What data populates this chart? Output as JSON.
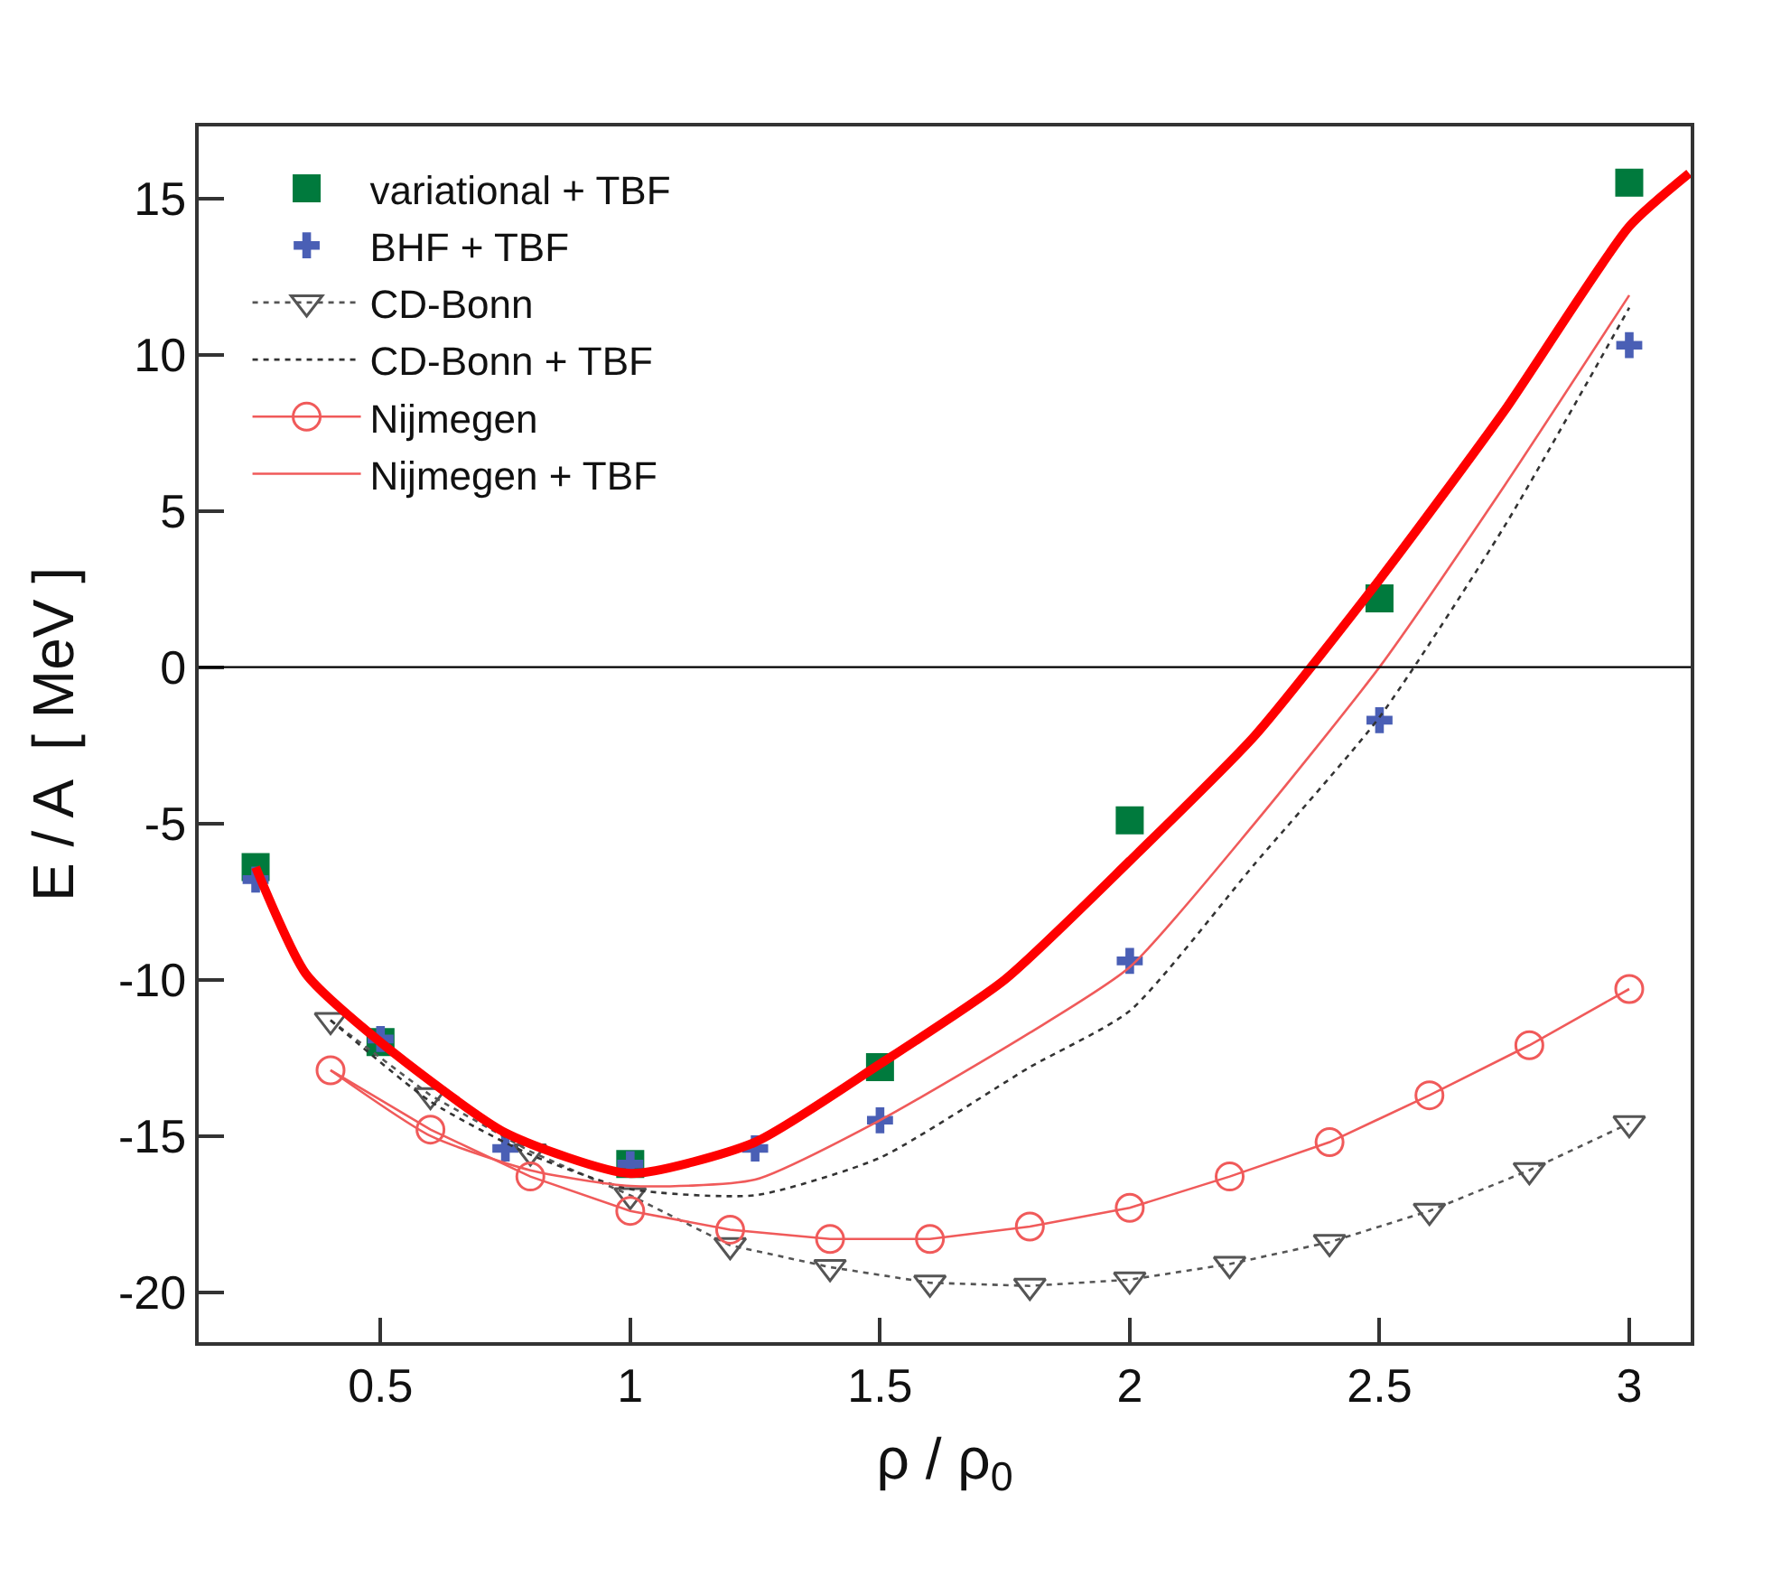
{
  "chart_data": {
    "type": "line",
    "xlabel": "ρ / ρ$_{0}$",
    "ylabel": "E / A  [ MeV ]",
    "xlim": [
      0.136,
      3.123
    ],
    "ylim": [
      -21.6,
      17.3
    ],
    "xticks": [
      0.5,
      1,
      1.5,
      2,
      2.5,
      3
    ],
    "yticks": [
      -20,
      -15,
      -10,
      -5,
      0,
      5,
      10,
      15
    ],
    "legend": "top left",
    "ref_lines": [
      {
        "axis": "y",
        "value": 0,
        "color": "#000000"
      }
    ],
    "series": [
      {
        "color": "#ff0000",
        "marker": "none",
        "line_style": "solid",
        "x": [
          0.25,
          0.35,
          0.5,
          0.75,
          1.0,
          1.25,
          1.5,
          1.75,
          2.0,
          2.25,
          2.5,
          2.75,
          3.0,
          3.12
        ],
        "values": [
          -6.4,
          -9.8,
          -12.0,
          -14.9,
          -16.2,
          -15.2,
          -12.7,
          -10.0,
          -6.2,
          -2.2,
          2.8,
          8.2,
          14.1,
          15.8
        ]
      },
      {
        "type": "scatter",
        "name": "variational + TBF",
        "color": "#007a3d",
        "marker": "square",
        "x": [
          0.25,
          0.5,
          1.0,
          1.5,
          2.0,
          2.5,
          3.0
        ],
        "values": [
          -6.4,
          -12.0,
          -15.9,
          -12.8,
          -4.9,
          2.2,
          15.5
        ]
      },
      {
        "type": "scatter",
        "name": "BHF + TBF",
        "color": "#4a5fb5",
        "marker": "cross",
        "x": [
          0.25,
          0.5,
          0.75,
          1.0,
          1.25,
          1.5,
          2.0,
          2.5,
          3.0
        ],
        "values": [
          -6.8,
          -11.9,
          -15.4,
          -15.9,
          -15.4,
          -14.5,
          -9.4,
          -1.7,
          10.3
        ]
      },
      {
        "name": "CD-Bonn",
        "color": "#555555",
        "marker": "triangle",
        "line_style": "dotted",
        "x": [
          0.4,
          0.6,
          0.8,
          1.0,
          1.2,
          1.4,
          1.6,
          1.8,
          2.0,
          2.2,
          2.4,
          2.6,
          2.8,
          3.0
        ],
        "values": [
          -11.3,
          -13.7,
          -15.5,
          -16.9,
          -18.5,
          -19.2,
          -19.7,
          -19.8,
          -19.6,
          -19.1,
          -18.4,
          -17.4,
          -16.1,
          -14.6
        ]
      },
      {
        "name": "CD-Bonn + TBF",
        "color": "#333333",
        "marker": "none",
        "line_style": "dotted",
        "x": [
          0.4,
          0.6,
          0.8,
          1.0,
          1.25,
          1.5,
          1.8,
          2.0,
          2.25,
          2.5,
          2.75,
          3.0
        ],
        "values": [
          -11.3,
          -13.9,
          -15.6,
          -16.7,
          -16.9,
          -15.7,
          -12.8,
          -11.0,
          -6.3,
          -1.6,
          4.5,
          11.5
        ]
      },
      {
        "name": "Nijmegen",
        "color": "#f05a5a",
        "marker": "circle",
        "line_style": "solid",
        "x": [
          0.4,
          0.6,
          0.8,
          1.0,
          1.2,
          1.4,
          1.6,
          1.8,
          2.0,
          2.2,
          2.4,
          2.6,
          2.8,
          3.0
        ],
        "values": [
          -12.9,
          -14.8,
          -16.3,
          -17.4,
          -18.0,
          -18.3,
          -18.3,
          -17.9,
          -17.3,
          -16.3,
          -15.2,
          -13.7,
          -12.1,
          -10.3
        ]
      },
      {
        "name": "Nijmegen + TBF",
        "color": "#f05a5a",
        "marker": "none",
        "line_style": "solid",
        "x": [
          0.4,
          0.6,
          0.8,
          1.0,
          1.25,
          1.5,
          1.8,
          2.0,
          2.25,
          2.5,
          2.75,
          3.0
        ],
        "values": [
          -12.9,
          -15.0,
          -16.1,
          -16.6,
          -16.4,
          -14.5,
          -11.7,
          -9.6,
          -5.0,
          0.0,
          5.8,
          11.9
        ]
      }
    ]
  }
}
